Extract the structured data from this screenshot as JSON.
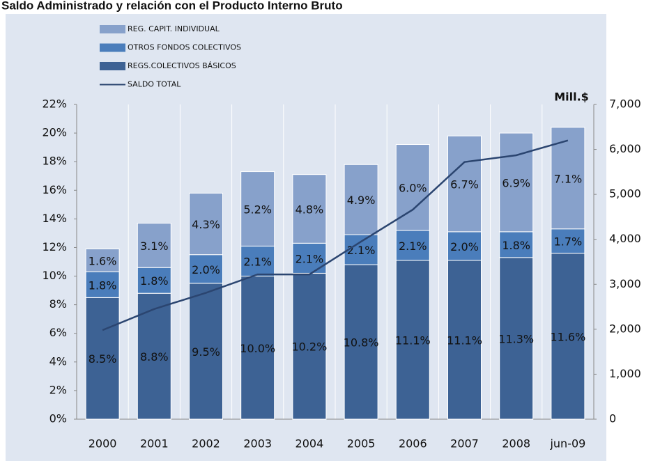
{
  "chart_data": {
    "type": "bar",
    "title": "Saldo Administrado y relación con el Producto Interno Bruto",
    "y2_label": "Mill.$",
    "categories": [
      "2000",
      "2001",
      "2002",
      "2003",
      "2004",
      "2005",
      "2006",
      "2007",
      "2008",
      "jun-09"
    ],
    "stacked": true,
    "series": [
      {
        "name": "REGS.COLECTIVOS  BÁSICOS",
        "color": "#3d6294",
        "values": [
          8.5,
          8.8,
          9.5,
          10.0,
          10.2,
          10.8,
          11.1,
          11.1,
          11.3,
          11.6
        ],
        "value_labels": [
          "8.5%",
          "8.8%",
          "9.5%",
          "10.0%",
          "10.2%",
          "10.8%",
          "11.1%",
          "11.1%",
          "11.3%",
          "11.6%"
        ]
      },
      {
        "name": "OTROS FONDOS  COLECTIVOS",
        "color": "#4a7dbb",
        "values": [
          1.8,
          1.8,
          2.0,
          2.1,
          2.1,
          2.1,
          2.1,
          2.0,
          1.8,
          1.7
        ],
        "value_labels": [
          "1.8%",
          "1.8%",
          "2.0%",
          "2.1%",
          "2.1%",
          "2.1%",
          "2.1%",
          "2.0%",
          "1.8%",
          "1.7%"
        ]
      },
      {
        "name": "REG. CAPIT. INDIVIDUAL",
        "color": "#87a1cb",
        "values": [
          1.6,
          3.1,
          4.3,
          5.2,
          4.8,
          4.9,
          6.0,
          6.7,
          6.9,
          7.1
        ],
        "value_labels": [
          "1.6%",
          "3.1%",
          "4.3%",
          "5.2%",
          "4.8%",
          "4.9%",
          "6.0%",
          "6.7%",
          "6.9%",
          "7.1%"
        ]
      },
      {
        "name": "SALDO TOTAL",
        "type": "line",
        "axis": "y2",
        "color": "#2b4570",
        "values": [
          1980,
          2450,
          2810,
          3220,
          3220,
          3950,
          4660,
          5720,
          5870,
          6200
        ]
      }
    ],
    "ylim": [
      0,
      22
    ],
    "yticks": [
      {
        "value": 0,
        "label": "0%"
      },
      {
        "value": 2,
        "label": "2%"
      },
      {
        "value": 4,
        "label": "4%"
      },
      {
        "value": 6,
        "label": "6%"
      },
      {
        "value": 8,
        "label": "8%"
      },
      {
        "value": 10,
        "label": "10%"
      },
      {
        "value": 12,
        "label": "12%"
      },
      {
        "value": 14,
        "label": "14%"
      },
      {
        "value": 16,
        "label": "16%"
      },
      {
        "value": 18,
        "label": "18%"
      },
      {
        "value": 20,
        "label": "20%"
      },
      {
        "value": 22,
        "label": "22%"
      }
    ],
    "y2lim": [
      0,
      7000
    ],
    "y2ticks": [
      0,
      {
        "value": 1000,
        "label": "1,000"
      },
      {
        "value": 2000,
        "label": "2,000"
      },
      {
        "value": 3000,
        "label": "3,000"
      },
      {
        "value": 4000,
        "label": "4,000"
      },
      {
        "value": 5000,
        "label": "5,000"
      },
      {
        "value": 6000,
        "label": "6,000"
      },
      {
        "value": 7000,
        "label": "7,000"
      }
    ],
    "legend": "top-left"
  }
}
